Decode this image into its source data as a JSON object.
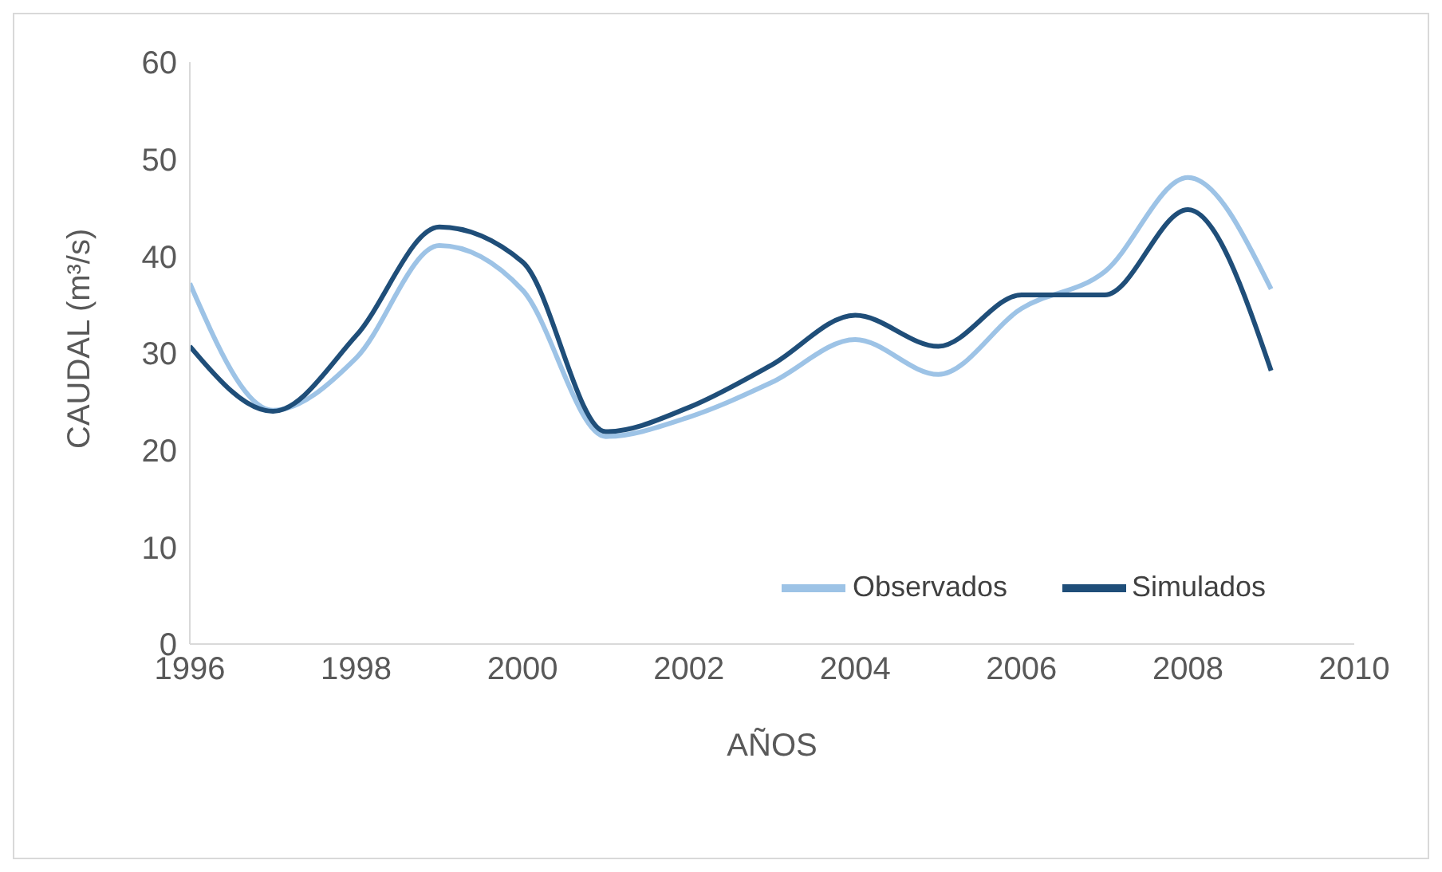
{
  "chart_data": {
    "type": "line",
    "xlabel": "AÑOS",
    "ylabel": "CAUDAL (m³/s)",
    "x": [
      1996,
      1997,
      1998,
      1999,
      2000,
      2001,
      2002,
      2003,
      2004,
      2005,
      2006,
      2007,
      2008,
      2009
    ],
    "series": [
      {
        "name": "Observados",
        "color": "#9dc3e6",
        "values": [
          37.2,
          24.1,
          29.5,
          41.1,
          36.5,
          21.4,
          23.4,
          27,
          31.4,
          27.8,
          34.6,
          38.4,
          48.1,
          36.6
        ]
      },
      {
        "name": "Simulados",
        "color": "#1f4e79",
        "values": [
          30.7,
          24,
          31.8,
          43,
          39.4,
          21.9,
          24.4,
          28.8,
          33.9,
          30.7,
          36,
          36,
          44.8,
          28.2
        ]
      }
    ],
    "xlim": [
      1996,
      2010
    ],
    "xticks": [
      1996,
      1998,
      2000,
      2002,
      2004,
      2006,
      2008,
      2010
    ],
    "ylim": [
      0,
      60
    ],
    "yticks": [
      0,
      10,
      20,
      30,
      40,
      50,
      60
    ],
    "grid": false,
    "legend": "right",
    "marker": "none",
    "line_style": "solid"
  }
}
